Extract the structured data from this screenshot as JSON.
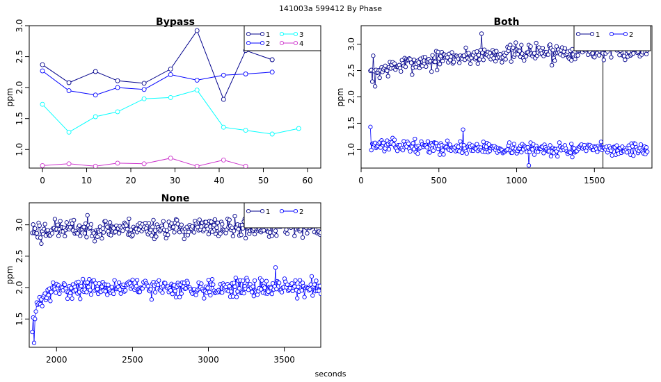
{
  "page": {
    "title": "141003a   599412  By Phase",
    "xlabel": "seconds"
  },
  "colors": {
    "c1": "#00008b",
    "c2": "#0000ff",
    "c3": "#00ffff",
    "c4": "#cc33cc",
    "frame": "#000000"
  },
  "chart_data": [
    {
      "name": "bypass",
      "type": "line",
      "title": "Bypass",
      "xlabel": "",
      "ylabel": "ppm",
      "xlim": [
        -3,
        63
      ],
      "ylim": [
        0.7,
        3.0
      ],
      "xticks": [
        0,
        10,
        20,
        30,
        40,
        50,
        60
      ],
      "yticks": [
        1.0,
        1.5,
        2.0,
        2.5,
        3.0
      ],
      "legend": {
        "position": "top-right",
        "entries": [
          "1",
          "2",
          "3",
          "4"
        ]
      },
      "series": [
        {
          "name": "1",
          "color": "c1",
          "x": [
            0,
            6,
            12,
            17,
            23,
            29,
            35,
            41,
            46,
            52
          ],
          "y": [
            2.37,
            2.08,
            2.26,
            2.11,
            2.07,
            2.3,
            2.92,
            1.81,
            2.6,
            2.45
          ]
        },
        {
          "name": "2",
          "color": "c2",
          "x": [
            0,
            6,
            12,
            17,
            23,
            29,
            35,
            41,
            46,
            52
          ],
          "y": [
            2.27,
            1.95,
            1.88,
            2.0,
            1.97,
            2.21,
            2.12,
            2.2,
            2.22,
            2.25
          ]
        },
        {
          "name": "3",
          "color": "c3",
          "x": [
            0,
            6,
            12,
            17,
            23,
            29,
            35,
            41,
            46,
            52,
            58
          ],
          "y": [
            1.73,
            1.28,
            1.53,
            1.61,
            1.82,
            1.84,
            1.96,
            1.36,
            1.31,
            1.25,
            1.34
          ]
        },
        {
          "name": "4",
          "color": "c4",
          "x": [
            0,
            6,
            12,
            17,
            23,
            29,
            35,
            41,
            46
          ],
          "y": [
            0.74,
            0.77,
            0.73,
            0.78,
            0.77,
            0.86,
            0.73,
            0.83,
            0.73
          ]
        }
      ]
    },
    {
      "name": "both",
      "type": "line",
      "title": "Both",
      "xlabel": "",
      "ylabel": "ppm",
      "xlim": [
        0,
        1870
      ],
      "ylim": [
        0.65,
        3.35
      ],
      "xticks": [
        0,
        500,
        1000,
        1500
      ],
      "yticks": [
        1.0,
        1.5,
        2.0,
        2.5,
        3.0
      ],
      "legend": {
        "position": "top-right",
        "entries": [
          "1",
          "2"
        ]
      },
      "vline": 1555,
      "series": [
        {
          "name": "1",
          "color": "c1",
          "gen": {
            "x0": 60,
            "x1": 1840,
            "n": 300,
            "y0": 2.45,
            "y1": 2.9,
            "tau": 500,
            "amp": 0.12,
            "seed": 7
          },
          "outliers": [
            [
              75,
              2.78
            ],
            [
              90,
              2.2
            ],
            [
              450,
              2.48
            ],
            [
              775,
              3.2
            ],
            [
              1225,
              2.6
            ]
          ]
        },
        {
          "name": "2",
          "color": "c2",
          "gen": {
            "x0": 60,
            "x1": 1840,
            "n": 300,
            "y0": 1.1,
            "y1": 1.0,
            "tau": 600,
            "amp": 0.08,
            "seed": 13
          },
          "outliers": [
            [
              60,
              1.43
            ],
            [
              1080,
              0.7
            ],
            [
              655,
              1.38
            ],
            [
              1360,
              0.86
            ]
          ]
        }
      ]
    },
    {
      "name": "none",
      "type": "line",
      "title": "None",
      "xlabel": "seconds",
      "ylabel": "ppm",
      "xlim": [
        1820,
        3740
      ],
      "ylim": [
        1.05,
        3.35
      ],
      "xticks": [
        2000,
        2500,
        3000,
        3500
      ],
      "yticks": [
        1.5,
        2.0,
        2.5,
        3.0
      ],
      "legend": {
        "position": "top-right",
        "entries": [
          "1",
          "2"
        ]
      },
      "series": [
        {
          "name": "1",
          "color": "c1",
          "gen": {
            "x0": 1840,
            "x1": 3740,
            "n": 320,
            "y0": 2.92,
            "y1": 2.95,
            "tau": 400,
            "amp": 0.11,
            "seed": 23
          },
          "outliers": [
            [
              1900,
              2.7
            ]
          ]
        },
        {
          "name": "2",
          "color": "c2",
          "gen": {
            "x0": 1840,
            "x1": 3740,
            "n": 320,
            "y0": 1.45,
            "y1": 2.0,
            "tau": 60,
            "amp": 0.1,
            "seed": 31
          },
          "outliers": [
            [
              1850,
              1.12
            ],
            [
              1855,
              1.5
            ],
            [
              1862,
              1.62
            ],
            [
              3440,
              2.32
            ]
          ]
        }
      ]
    }
  ]
}
